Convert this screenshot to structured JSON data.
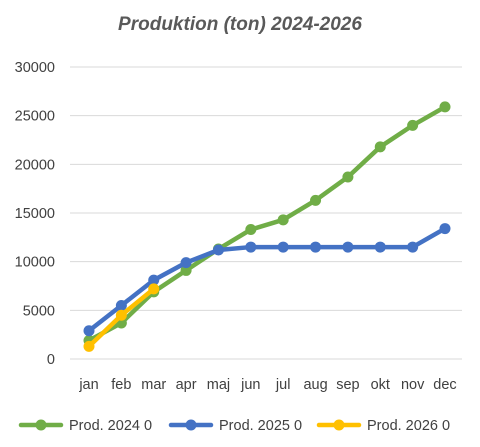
{
  "chart_data": {
    "type": "line",
    "title": "Produktion (ton) 2024-2026",
    "xlabel": "",
    "ylabel": "",
    "categories": [
      "jan",
      "feb",
      "mar",
      "apr",
      "maj",
      "jun",
      "jul",
      "aug",
      "sep",
      "okt",
      "nov",
      "dec"
    ],
    "ylim": [
      0,
      30000
    ],
    "yticks": [
      "0",
      "5000",
      "10000",
      "15000",
      "20000",
      "25000",
      "30000"
    ],
    "grid": true,
    "legend": "bottom",
    "series": [
      {
        "name": "Prod. 2024 0",
        "color": "#70ad47",
        "values": [
          1900,
          3700,
          6900,
          9100,
          11300,
          13300,
          14300,
          16300,
          18700,
          21800,
          24000,
          25900
        ]
      },
      {
        "name": "Prod. 2025 0",
        "color": "#4472c4",
        "values": [
          2900,
          5500,
          8100,
          9900,
          11200,
          11500,
          11500,
          11500,
          11500,
          11500,
          11500,
          13400
        ]
      },
      {
        "name": "Prod. 2026 0",
        "color": "#ffc000",
        "values": [
          1300,
          4500,
          7200,
          null,
          null,
          null,
          null,
          null,
          null,
          null,
          null,
          null
        ]
      }
    ]
  }
}
